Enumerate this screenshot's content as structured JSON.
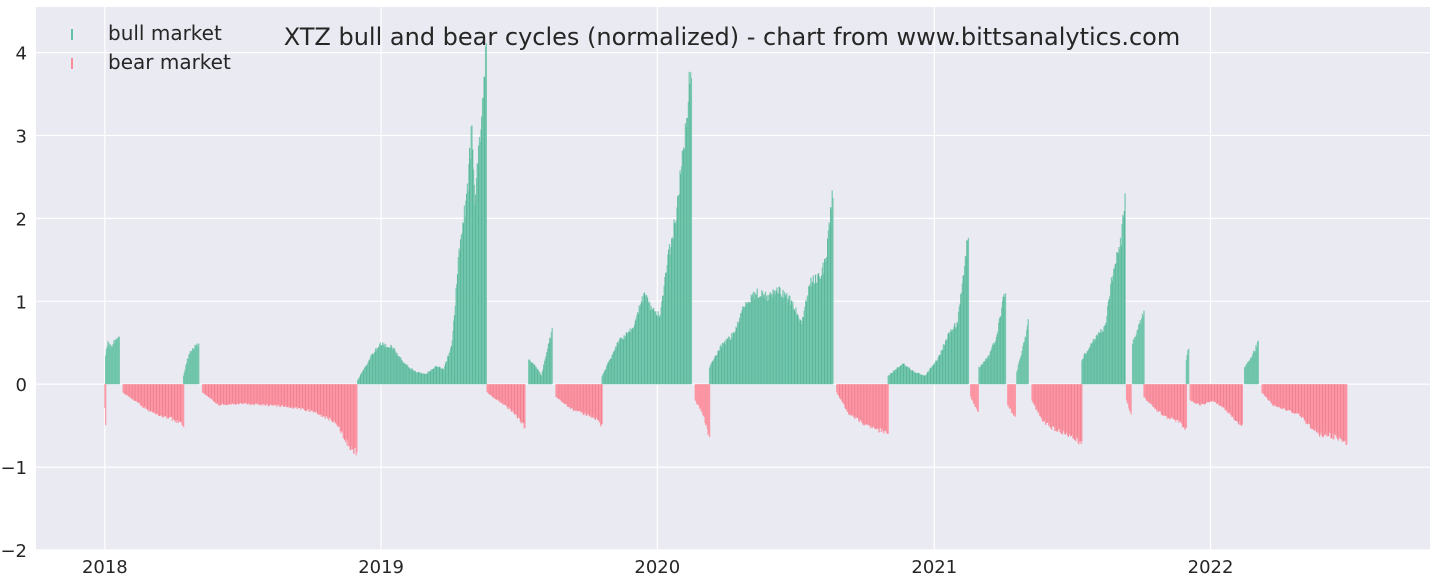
{
  "chart_data": {
    "type": "bar",
    "title": "XTZ bull and bear cycles (normalized)  - chart from www.bittsanalytics.com",
    "xlabel": "",
    "ylabel": "",
    "x_range": [
      "2017-10-02",
      "2022-10-18"
    ],
    "ylim": [
      -2,
      4.55
    ],
    "y_ticks": [
      4,
      3,
      2,
      1,
      0,
      -1,
      -2
    ],
    "y_tick_labels": [
      "4",
      "3",
      "2",
      "1",
      "0",
      "−1",
      "−2"
    ],
    "x_ticks": [
      "2018-01-01",
      "2019-01-01",
      "2020-01-01",
      "2021-01-01",
      "2022-01-01"
    ],
    "x_tick_labels": [
      "2018",
      "2019",
      "2020",
      "2021",
      "2022"
    ],
    "grid": true,
    "legend": "top-left",
    "colors": {
      "bull market": "#66c2a5",
      "bear market": "#fc8d9c",
      "background": "#eaeaf2",
      "grid": "#ffffff",
      "text": "#262626"
    },
    "series": [
      {
        "name": "bull market",
        "segments": [
          {
            "start": "2018-01-02",
            "end": "2018-01-20",
            "points": [
              [
                "2018-01-02",
                0.35
              ],
              [
                "2018-01-05",
                0.52
              ],
              [
                "2018-01-10",
                0.45
              ],
              [
                "2018-01-15",
                0.55
              ],
              [
                "2018-01-20",
                0.6
              ]
            ]
          },
          {
            "start": "2018-04-15",
            "end": "2018-05-05",
            "points": [
              [
                "2018-04-15",
                0.1
              ],
              [
                "2018-04-20",
                0.3
              ],
              [
                "2018-04-25",
                0.42
              ],
              [
                "2018-05-01",
                0.47
              ],
              [
                "2018-05-05",
                0.48
              ]
            ]
          },
          {
            "start": "2018-12-01",
            "end": "2019-05-20",
            "points": [
              [
                "2018-12-01",
                0.05
              ],
              [
                "2018-12-20",
                0.35
              ],
              [
                "2018-12-31",
                0.48
              ],
              [
                "2019-01-15",
                0.45
              ],
              [
                "2019-02-01",
                0.25
              ],
              [
                "2019-02-15",
                0.15
              ],
              [
                "2019-03-01",
                0.12
              ],
              [
                "2019-03-15",
                0.22
              ],
              [
                "2019-03-25",
                0.18
              ],
              [
                "2019-04-05",
                0.5
              ],
              [
                "2019-04-15",
                1.7
              ],
              [
                "2019-04-25",
                2.3
              ],
              [
                "2019-05-01",
                3.1
              ],
              [
                "2019-05-05",
                2.1
              ],
              [
                "2019-05-10",
                2.8
              ],
              [
                "2019-05-15",
                3.3
              ],
              [
                "2019-05-20",
                4.1
              ]
            ]
          },
          {
            "start": "2019-07-15",
            "end": "2019-08-15",
            "points": [
              [
                "2019-07-15",
                0.3
              ],
              [
                "2019-07-25",
                0.2
              ],
              [
                "2019-08-01",
                0.1
              ],
              [
                "2019-08-08",
                0.4
              ],
              [
                "2019-08-15",
                0.65
              ]
            ]
          },
          {
            "start": "2019-10-20",
            "end": "2020-02-15",
            "points": [
              [
                "2019-10-20",
                0.1
              ],
              [
                "2019-11-10",
                0.5
              ],
              [
                "2019-12-01",
                0.7
              ],
              [
                "2019-12-15",
                1.1
              ],
              [
                "2019-12-25",
                0.9
              ],
              [
                "2020-01-05",
                0.85
              ],
              [
                "2020-01-15",
                1.5
              ],
              [
                "2020-01-25",
                2.0
              ],
              [
                "2020-02-05",
                2.9
              ],
              [
                "2020-02-12",
                3.6
              ],
              [
                "2020-02-15",
                3.8
              ]
            ]
          },
          {
            "start": "2020-03-10",
            "end": "2020-08-20",
            "points": [
              [
                "2020-03-10",
                0.2
              ],
              [
                "2020-03-25",
                0.45
              ],
              [
                "2020-04-10",
                0.6
              ],
              [
                "2020-04-25",
                0.95
              ],
              [
                "2020-05-10",
                1.1
              ],
              [
                "2020-05-25",
                1.05
              ],
              [
                "2020-06-10",
                1.15
              ],
              [
                "2020-06-25",
                1.0
              ],
              [
                "2020-07-10",
                0.75
              ],
              [
                "2020-07-20",
                1.2
              ],
              [
                "2020-08-01",
                1.3
              ],
              [
                "2020-08-10",
                1.45
              ],
              [
                "2020-08-20",
                2.3
              ]
            ]
          },
          {
            "start": "2020-11-01",
            "end": "2021-02-15",
            "points": [
              [
                "2020-11-01",
                0.1
              ],
              [
                "2020-11-20",
                0.25
              ],
              [
                "2020-12-05",
                0.15
              ],
              [
                "2020-12-20",
                0.1
              ],
              [
                "2021-01-05",
                0.3
              ],
              [
                "2021-01-20",
                0.6
              ],
              [
                "2021-02-01",
                0.75
              ],
              [
                "2021-02-15",
                1.8
              ]
            ]
          },
          {
            "start": "2021-03-01",
            "end": "2021-04-05",
            "points": [
              [
                "2021-03-01",
                0.2
              ],
              [
                "2021-03-15",
                0.35
              ],
              [
                "2021-03-25",
                0.6
              ],
              [
                "2021-04-05",
                1.15
              ]
            ]
          },
          {
            "start": "2021-04-20",
            "end": "2021-05-05",
            "points": [
              [
                "2021-04-20",
                0.15
              ],
              [
                "2021-05-01",
                0.55
              ],
              [
                "2021-05-05",
                0.75
              ]
            ]
          },
          {
            "start": "2021-07-15",
            "end": "2021-09-10",
            "points": [
              [
                "2021-07-15",
                0.3
              ],
              [
                "2021-08-01",
                0.55
              ],
              [
                "2021-08-15",
                0.7
              ],
              [
                "2021-08-25",
                1.35
              ],
              [
                "2021-09-05",
                1.75
              ],
              [
                "2021-09-10",
                2.3
              ]
            ]
          },
          {
            "start": "2021-09-20",
            "end": "2021-10-05",
            "points": [
              [
                "2021-09-20",
                0.5
              ],
              [
                "2021-10-05",
                0.85
              ]
            ]
          },
          {
            "start": "2021-11-30",
            "end": "2021-12-03",
            "points": [
              [
                "2021-11-30",
                0.3
              ],
              [
                "2021-12-03",
                0.45
              ]
            ]
          },
          {
            "start": "2022-02-15",
            "end": "2022-03-05",
            "points": [
              [
                "2022-02-15",
                0.2
              ],
              [
                "2022-02-25",
                0.35
              ],
              [
                "2022-03-05",
                0.5
              ]
            ]
          }
        ]
      },
      {
        "name": "bear market",
        "segments": [
          {
            "start": "2018-01-01",
            "end": "2018-01-02",
            "points": [
              [
                "2018-01-01",
                -0.3
              ],
              [
                "2018-01-02",
                -0.5
              ]
            ]
          },
          {
            "start": "2018-01-25",
            "end": "2018-04-15",
            "points": [
              [
                "2018-01-25",
                -0.1
              ],
              [
                "2018-02-10",
                -0.2
              ],
              [
                "2018-02-25",
                -0.3
              ],
              [
                "2018-03-15",
                -0.38
              ],
              [
                "2018-04-01",
                -0.42
              ],
              [
                "2018-04-15",
                -0.5
              ]
            ]
          },
          {
            "start": "2018-05-10",
            "end": "2018-11-30",
            "points": [
              [
                "2018-05-10",
                -0.1
              ],
              [
                "2018-06-01",
                -0.25
              ],
              [
                "2018-07-01",
                -0.23
              ],
              [
                "2018-08-01",
                -0.25
              ],
              [
                "2018-09-01",
                -0.27
              ],
              [
                "2018-10-01",
                -0.32
              ],
              [
                "2018-11-01",
                -0.45
              ],
              [
                "2018-11-20",
                -0.75
              ],
              [
                "2018-11-30",
                -0.82
              ]
            ]
          },
          {
            "start": "2019-05-21",
            "end": "2019-07-10",
            "points": [
              [
                "2019-05-21",
                -0.1
              ],
              [
                "2019-06-05",
                -0.2
              ],
              [
                "2019-06-20",
                -0.3
              ],
              [
                "2019-07-01",
                -0.4
              ],
              [
                "2019-07-10",
                -0.52
              ]
            ]
          },
          {
            "start": "2019-08-20",
            "end": "2019-10-20",
            "points": [
              [
                "2019-08-20",
                -0.15
              ],
              [
                "2019-09-10",
                -0.3
              ],
              [
                "2019-09-25",
                -0.35
              ],
              [
                "2019-10-10",
                -0.4
              ],
              [
                "2019-10-20",
                -0.5
              ]
            ]
          },
          {
            "start": "2020-02-20",
            "end": "2020-03-10",
            "points": [
              [
                "2020-02-20",
                -0.2
              ],
              [
                "2020-03-01",
                -0.35
              ],
              [
                "2020-03-10",
                -0.65
              ]
            ]
          },
          {
            "start": "2020-08-25",
            "end": "2020-11-01",
            "points": [
              [
                "2020-08-25",
                -0.1
              ],
              [
                "2020-09-10",
                -0.35
              ],
              [
                "2020-10-01",
                -0.48
              ],
              [
                "2020-10-20",
                -0.55
              ],
              [
                "2020-11-01",
                -0.58
              ]
            ]
          },
          {
            "start": "2021-02-18",
            "end": "2021-02-28",
            "points": [
              [
                "2021-02-18",
                -0.15
              ],
              [
                "2021-02-28",
                -0.35
              ]
            ]
          },
          {
            "start": "2021-04-08",
            "end": "2021-04-18",
            "points": [
              [
                "2021-04-08",
                -0.25
              ],
              [
                "2021-04-18",
                -0.4
              ]
            ]
          },
          {
            "start": "2021-05-10",
            "end": "2021-07-15",
            "points": [
              [
                "2021-05-10",
                -0.2
              ],
              [
                "2021-05-25",
                -0.45
              ],
              [
                "2021-06-10",
                -0.55
              ],
              [
                "2021-06-25",
                -0.6
              ],
              [
                "2021-07-10",
                -0.68
              ],
              [
                "2021-07-15",
                -0.72
              ]
            ]
          },
          {
            "start": "2021-09-12",
            "end": "2021-09-18",
            "points": [
              [
                "2021-09-12",
                -0.2
              ],
              [
                "2021-09-18",
                -0.35
              ]
            ]
          },
          {
            "start": "2021-10-05",
            "end": "2021-11-30",
            "points": [
              [
                "2021-10-05",
                -0.15
              ],
              [
                "2021-10-20",
                -0.3
              ],
              [
                "2021-11-05",
                -0.4
              ],
              [
                "2021-11-20",
                -0.45
              ],
              [
                "2021-11-30",
                -0.55
              ]
            ]
          },
          {
            "start": "2021-12-05",
            "end": "2022-02-12",
            "points": [
              [
                "2021-12-05",
                -0.2
              ],
              [
                "2021-12-20",
                -0.25
              ],
              [
                "2022-01-05",
                -0.2
              ],
              [
                "2022-01-20",
                -0.3
              ],
              [
                "2022-02-01",
                -0.42
              ],
              [
                "2022-02-12",
                -0.5
              ]
            ]
          },
          {
            "start": "2022-03-10",
            "end": "2022-06-30",
            "points": [
              [
                "2022-03-10",
                -0.1
              ],
              [
                "2022-03-25",
                -0.25
              ],
              [
                "2022-04-10",
                -0.3
              ],
              [
                "2022-04-25",
                -0.35
              ],
              [
                "2022-05-10",
                -0.48
              ],
              [
                "2022-05-25",
                -0.6
              ],
              [
                "2022-06-10",
                -0.62
              ],
              [
                "2022-06-30",
                -0.7
              ]
            ]
          }
        ]
      }
    ]
  }
}
